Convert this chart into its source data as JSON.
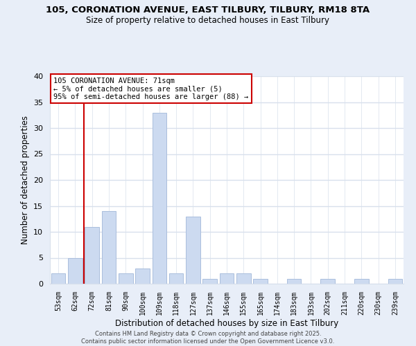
{
  "title": "105, CORONATION AVENUE, EAST TILBURY, TILBURY, RM18 8TA",
  "subtitle": "Size of property relative to detached houses in East Tilbury",
  "xlabel": "Distribution of detached houses by size in East Tilbury",
  "ylabel": "Number of detached properties",
  "bar_labels": [
    "53sqm",
    "62sqm",
    "72sqm",
    "81sqm",
    "90sqm",
    "100sqm",
    "109sqm",
    "118sqm",
    "127sqm",
    "137sqm",
    "146sqm",
    "155sqm",
    "165sqm",
    "174sqm",
    "183sqm",
    "193sqm",
    "202sqm",
    "211sqm",
    "220sqm",
    "230sqm",
    "239sqm"
  ],
  "bar_values": [
    2,
    5,
    11,
    14,
    2,
    3,
    33,
    2,
    13,
    1,
    2,
    2,
    1,
    0,
    1,
    0,
    1,
    0,
    1,
    0,
    1
  ],
  "bar_color": "#ccdaf0",
  "bar_edge_color": "#aabedd",
  "ylim": [
    0,
    40
  ],
  "yticks": [
    0,
    5,
    10,
    15,
    20,
    25,
    30,
    35,
    40
  ],
  "vline_x_idx": 2,
  "vline_color": "#cc0000",
  "annotation_title": "105 CORONATION AVENUE: 71sqm",
  "annotation_line1": "← 5% of detached houses are smaller (5)",
  "annotation_line2": "95% of semi-detached houses are larger (88) →",
  "annotation_box_color": "#ffffff",
  "annotation_box_edge": "#cc0000",
  "fig_bg_color": "#e8eef8",
  "plot_bg_color": "#ffffff",
  "grid_color": "#d8e0ec",
  "footer_line1": "Contains HM Land Registry data © Crown copyright and database right 2025.",
  "footer_line2": "Contains public sector information licensed under the Open Government Licence v3.0."
}
